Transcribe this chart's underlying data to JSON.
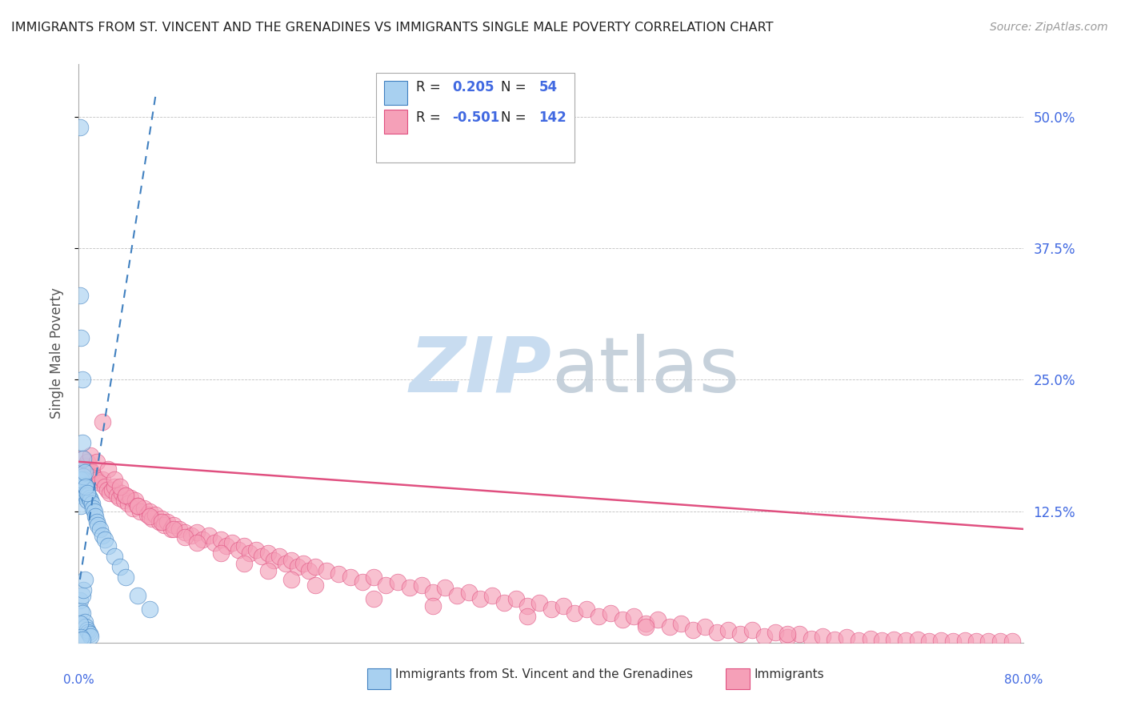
{
  "title": "IMMIGRANTS FROM ST. VINCENT AND THE GRENADINES VS IMMIGRANTS SINGLE MALE POVERTY CORRELATION CHART",
  "source": "Source: ZipAtlas.com",
  "ylabel": "Single Male Poverty",
  "ytick_labels": [
    "50.0%",
    "37.5%",
    "25.0%",
    "12.5%"
  ],
  "ytick_values": [
    0.5,
    0.375,
    0.25,
    0.125
  ],
  "xlim": [
    0.0,
    0.8
  ],
  "ylim": [
    0.0,
    0.55
  ],
  "blue_color": "#A8D0F0",
  "blue_line_color": "#4080C0",
  "pink_color": "#F5A0B8",
  "pink_line_color": "#E05080",
  "title_color": "#222222",
  "axis_label_color": "#4169E1",
  "right_tick_color": "#4169E1",
  "watermark_zip_color": "#C8DCF0",
  "watermark_atlas_color": "#C0CCD8",
  "blue_scatter_x": [
    0.001,
    0.001,
    0.001,
    0.002,
    0.002,
    0.002,
    0.002,
    0.003,
    0.003,
    0.003,
    0.003,
    0.003,
    0.004,
    0.004,
    0.004,
    0.005,
    0.005,
    0.005,
    0.005,
    0.006,
    0.006,
    0.006,
    0.007,
    0.007,
    0.007,
    0.008,
    0.008,
    0.009,
    0.009,
    0.01,
    0.01,
    0.011,
    0.012,
    0.013,
    0.014,
    0.015,
    0.016,
    0.018,
    0.02,
    0.022,
    0.025,
    0.03,
    0.035,
    0.04,
    0.05,
    0.06,
    0.001,
    0.002,
    0.003,
    0.002,
    0.004,
    0.005,
    0.006,
    0.007
  ],
  "blue_scatter_y": [
    0.49,
    0.33,
    0.04,
    0.29,
    0.14,
    0.13,
    0.03,
    0.25,
    0.19,
    0.165,
    0.045,
    0.028,
    0.175,
    0.155,
    0.05,
    0.15,
    0.145,
    0.06,
    0.02,
    0.148,
    0.14,
    0.015,
    0.145,
    0.135,
    0.012,
    0.14,
    0.01,
    0.138,
    0.008,
    0.135,
    0.006,
    0.132,
    0.128,
    0.125,
    0.12,
    0.115,
    0.112,
    0.108,
    0.102,
    0.098,
    0.092,
    0.082,
    0.072,
    0.062,
    0.045,
    0.032,
    0.018,
    0.005,
    0.003,
    0.155,
    0.158,
    0.162,
    0.148,
    0.142
  ],
  "pink_scatter_x": [
    0.003,
    0.005,
    0.007,
    0.009,
    0.011,
    0.013,
    0.015,
    0.017,
    0.02,
    0.022,
    0.024,
    0.026,
    0.028,
    0.03,
    0.032,
    0.034,
    0.036,
    0.038,
    0.04,
    0.042,
    0.044,
    0.046,
    0.048,
    0.05,
    0.052,
    0.055,
    0.058,
    0.06,
    0.062,
    0.065,
    0.068,
    0.07,
    0.072,
    0.075,
    0.078,
    0.08,
    0.085,
    0.09,
    0.095,
    0.1,
    0.105,
    0.11,
    0.115,
    0.12,
    0.125,
    0.13,
    0.135,
    0.14,
    0.145,
    0.15,
    0.155,
    0.16,
    0.165,
    0.17,
    0.175,
    0.18,
    0.185,
    0.19,
    0.195,
    0.2,
    0.21,
    0.22,
    0.23,
    0.24,
    0.25,
    0.26,
    0.27,
    0.28,
    0.29,
    0.3,
    0.31,
    0.32,
    0.33,
    0.34,
    0.35,
    0.36,
    0.37,
    0.38,
    0.39,
    0.4,
    0.41,
    0.42,
    0.43,
    0.44,
    0.45,
    0.46,
    0.47,
    0.48,
    0.49,
    0.5,
    0.51,
    0.52,
    0.53,
    0.54,
    0.55,
    0.56,
    0.57,
    0.58,
    0.59,
    0.6,
    0.61,
    0.62,
    0.63,
    0.64,
    0.65,
    0.66,
    0.67,
    0.68,
    0.69,
    0.7,
    0.71,
    0.72,
    0.73,
    0.74,
    0.75,
    0.76,
    0.77,
    0.78,
    0.79,
    0.01,
    0.015,
    0.02,
    0.025,
    0.03,
    0.035,
    0.04,
    0.05,
    0.06,
    0.07,
    0.08,
    0.09,
    0.1,
    0.12,
    0.14,
    0.16,
    0.18,
    0.2,
    0.25,
    0.3,
    0.38,
    0.48,
    0.6
  ],
  "pink_scatter_y": [
    0.175,
    0.168,
    0.172,
    0.165,
    0.162,
    0.158,
    0.155,
    0.152,
    0.155,
    0.148,
    0.145,
    0.142,
    0.145,
    0.148,
    0.14,
    0.138,
    0.142,
    0.135,
    0.14,
    0.132,
    0.138,
    0.128,
    0.135,
    0.13,
    0.125,
    0.128,
    0.122,
    0.125,
    0.118,
    0.122,
    0.115,
    0.118,
    0.112,
    0.115,
    0.108,
    0.112,
    0.108,
    0.105,
    0.102,
    0.105,
    0.098,
    0.102,
    0.095,
    0.098,
    0.092,
    0.095,
    0.088,
    0.092,
    0.085,
    0.088,
    0.082,
    0.085,
    0.078,
    0.082,
    0.075,
    0.078,
    0.072,
    0.075,
    0.068,
    0.072,
    0.068,
    0.065,
    0.062,
    0.058,
    0.062,
    0.055,
    0.058,
    0.052,
    0.055,
    0.048,
    0.052,
    0.045,
    0.048,
    0.042,
    0.045,
    0.038,
    0.042,
    0.035,
    0.038,
    0.032,
    0.035,
    0.028,
    0.032,
    0.025,
    0.028,
    0.022,
    0.025,
    0.018,
    0.022,
    0.015,
    0.018,
    0.012,
    0.015,
    0.01,
    0.012,
    0.008,
    0.012,
    0.006,
    0.01,
    0.005,
    0.008,
    0.004,
    0.006,
    0.003,
    0.005,
    0.002,
    0.004,
    0.002,
    0.003,
    0.002,
    0.003,
    0.001,
    0.002,
    0.001,
    0.002,
    0.001,
    0.001,
    0.001,
    0.001,
    0.178,
    0.172,
    0.21,
    0.165,
    0.155,
    0.148,
    0.14,
    0.13,
    0.12,
    0.115,
    0.108,
    0.1,
    0.095,
    0.085,
    0.075,
    0.068,
    0.06,
    0.055,
    0.042,
    0.035,
    0.025,
    0.015,
    0.008
  ],
  "blue_trendline_x": [
    0.001,
    0.065
  ],
  "blue_trendline_y": [
    0.06,
    0.52
  ],
  "pink_trendline_x": [
    0.0,
    0.8
  ],
  "pink_trendline_y": [
    0.172,
    0.108
  ],
  "legend_r1": "R =",
  "legend_v1": "0.205",
  "legend_n1": "N =",
  "legend_nv1": "54",
  "legend_r2": "R =",
  "legend_v2": "-0.501",
  "legend_n2": "N =",
  "legend_nv2": "142"
}
